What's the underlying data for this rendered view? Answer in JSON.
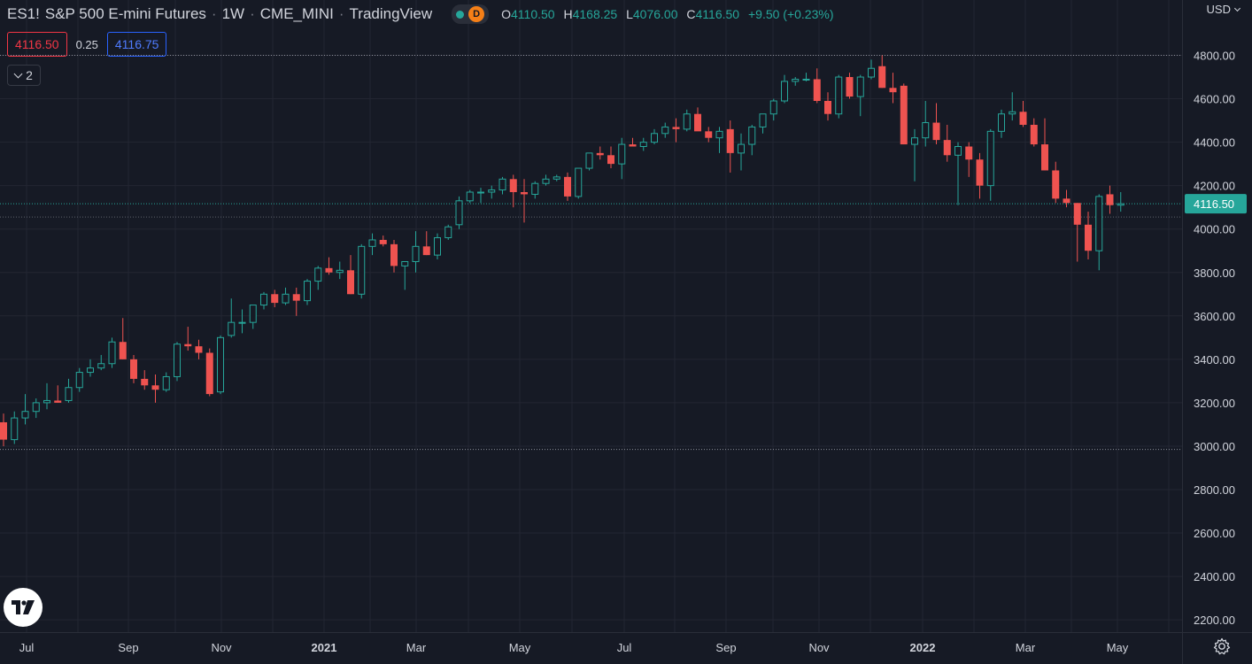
{
  "header": {
    "symbol": "ES1!",
    "description": "S&P 500 E-mini Futures",
    "interval": "1W",
    "exchange": "CME_MINI",
    "source": "TradingView",
    "status_letter": "D",
    "ohlc": {
      "o_key": "O",
      "o": "4110.50",
      "h_key": "H",
      "h": "4168.25",
      "l_key": "L",
      "l": "4076.00",
      "c_key": "C",
      "c": "4116.50",
      "change": "+9.50 (+0.23%)"
    }
  },
  "quote": {
    "sell": "4116.50",
    "spread": "0.25",
    "buy": "4116.75"
  },
  "indicators_count": "2",
  "currency": "USD",
  "colors": {
    "background": "#161a25",
    "up": "#26a69a",
    "down": "#ef5350",
    "grid": "#232632",
    "text": "#d1d4dc"
  },
  "chart_data": {
    "type": "candlestick",
    "interval": "1W",
    "y_axis": {
      "range": [
        2150,
        4860
      ],
      "ticks": [
        2200,
        2400,
        2600,
        2800,
        3000,
        3200,
        3400,
        3600,
        3800,
        4000,
        4200,
        4400,
        4600,
        4800
      ],
      "side": "right"
    },
    "x_axis_labels": [
      "Jul",
      "Sep",
      "Nov",
      "2021",
      "Mar",
      "May",
      "Jul",
      "Sep",
      "Nov",
      "2022",
      "Mar",
      "May"
    ],
    "last_price": 4116.5,
    "last_price_label": "4116.50",
    "range_high": 4800,
    "range_low": 2985,
    "candles": [
      [
        3110,
        3150,
        3000,
        3030
      ],
      [
        3030,
        3160,
        3010,
        3130
      ],
      [
        3130,
        3240,
        3100,
        3160
      ],
      [
        3160,
        3220,
        3130,
        3200
      ],
      [
        3200,
        3290,
        3170,
        3210
      ],
      [
        3210,
        3280,
        3200,
        3200
      ],
      [
        3210,
        3310,
        3200,
        3270
      ],
      [
        3270,
        3360,
        3250,
        3340
      ],
      [
        3340,
        3400,
        3320,
        3360
      ],
      [
        3360,
        3420,
        3350,
        3380
      ],
      [
        3380,
        3500,
        3360,
        3480
      ],
      [
        3480,
        3590,
        3400,
        3400
      ],
      [
        3400,
        3420,
        3290,
        3310
      ],
      [
        3310,
        3350,
        3260,
        3280
      ],
      [
        3280,
        3330,
        3200,
        3260
      ],
      [
        3260,
        3340,
        3250,
        3320
      ],
      [
        3320,
        3480,
        3300,
        3470
      ],
      [
        3470,
        3550,
        3440,
        3460
      ],
      [
        3460,
        3490,
        3400,
        3430
      ],
      [
        3430,
        3450,
        3230,
        3240
      ],
      [
        3250,
        3510,
        3240,
        3500
      ],
      [
        3510,
        3680,
        3500,
        3570
      ],
      [
        3570,
        3630,
        3520,
        3570
      ],
      [
        3570,
        3650,
        3540,
        3650
      ],
      [
        3650,
        3710,
        3630,
        3700
      ],
      [
        3700,
        3720,
        3640,
        3660
      ],
      [
        3660,
        3730,
        3650,
        3700
      ],
      [
        3700,
        3730,
        3600,
        3670
      ],
      [
        3670,
        3770,
        3650,
        3760
      ],
      [
        3760,
        3830,
        3720,
        3820
      ],
      [
        3820,
        3870,
        3790,
        3800
      ],
      [
        3800,
        3850,
        3770,
        3810
      ],
      [
        3810,
        3880,
        3700,
        3700
      ],
      [
        3700,
        3930,
        3680,
        3920
      ],
      [
        3920,
        3980,
        3880,
        3950
      ],
      [
        3950,
        3970,
        3920,
        3930
      ],
      [
        3930,
        3950,
        3800,
        3830
      ],
      [
        3830,
        3850,
        3720,
        3850
      ],
      [
        3850,
        3990,
        3800,
        3920
      ],
      [
        3920,
        3990,
        3880,
        3880
      ],
      [
        3880,
        3980,
        3860,
        3960
      ],
      [
        3960,
        4020,
        3950,
        4010
      ],
      [
        4020,
        4150,
        4000,
        4130
      ],
      [
        4130,
        4180,
        4120,
        4170
      ],
      [
        4170,
        4190,
        4120,
        4170
      ],
      [
        4170,
        4200,
        4140,
        4180
      ],
      [
        4180,
        4240,
        4160,
        4230
      ],
      [
        4230,
        4250,
        4100,
        4170
      ],
      [
        4170,
        4230,
        4030,
        4160
      ],
      [
        4160,
        4220,
        4140,
        4210
      ],
      [
        4210,
        4250,
        4200,
        4230
      ],
      [
        4230,
        4250,
        4220,
        4240
      ],
      [
        4240,
        4260,
        4130,
        4150
      ],
      [
        4150,
        4280,
        4140,
        4280
      ],
      [
        4280,
        4350,
        4270,
        4350
      ],
      [
        4350,
        4380,
        4320,
        4340
      ],
      [
        4340,
        4380,
        4280,
        4300
      ],
      [
        4300,
        4420,
        4230,
        4390
      ],
      [
        4390,
        4420,
        4380,
        4380
      ],
      [
        4380,
        4420,
        4360,
        4400
      ],
      [
        4400,
        4460,
        4390,
        4440
      ],
      [
        4440,
        4490,
        4420,
        4470
      ],
      [
        4470,
        4510,
        4400,
        4460
      ],
      [
        4460,
        4550,
        4450,
        4530
      ],
      [
        4530,
        4560,
        4460,
        4450
      ],
      [
        4450,
        4470,
        4400,
        4420
      ],
      [
        4420,
        4470,
        4350,
        4450
      ],
      [
        4460,
        4500,
        4260,
        4350
      ],
      [
        4350,
        4440,
        4270,
        4390
      ],
      [
        4390,
        4480,
        4340,
        4470
      ],
      [
        4470,
        4530,
        4440,
        4530
      ],
      [
        4530,
        4600,
        4500,
        4590
      ],
      [
        4590,
        4710,
        4580,
        4680
      ],
      [
        4680,
        4700,
        4660,
        4690
      ],
      [
        4690,
        4720,
        4680,
        4690
      ],
      [
        4690,
        4740,
        4580,
        4590
      ],
      [
        4590,
        4630,
        4500,
        4530
      ],
      [
        4530,
        4710,
        4510,
        4700
      ],
      [
        4700,
        4720,
        4600,
        4610
      ],
      [
        4610,
        4710,
        4520,
        4700
      ],
      [
        4700,
        4780,
        4690,
        4740
      ],
      [
        4750,
        4800,
        4650,
        4650
      ],
      [
        4650,
        4720,
        4580,
        4630
      ],
      [
        4660,
        4670,
        4390,
        4390
      ],
      [
        4390,
        4460,
        4220,
        4420
      ],
      [
        4420,
        4590,
        4380,
        4490
      ],
      [
        4490,
        4580,
        4390,
        4410
      ],
      [
        4410,
        4480,
        4310,
        4340
      ],
      [
        4340,
        4400,
        4110,
        4380
      ],
      [
        4380,
        4400,
        4240,
        4320
      ],
      [
        4320,
        4350,
        4140,
        4200
      ],
      [
        4200,
        4460,
        4130,
        4450
      ],
      [
        4450,
        4550,
        4420,
        4530
      ],
      [
        4530,
        4630,
        4500,
        4540
      ],
      [
        4540,
        4590,
        4470,
        4480
      ],
      [
        4480,
        4510,
        4380,
        4390
      ],
      [
        4390,
        4510,
        4270,
        4270
      ],
      [
        4270,
        4310,
        4120,
        4140
      ],
      [
        4140,
        4180,
        4100,
        4120
      ],
      [
        4120,
        4120,
        3850,
        4020
      ],
      [
        4020,
        4080,
        3860,
        3900
      ],
      [
        3900,
        4160,
        3810,
        4150
      ],
      [
        4160,
        4200,
        4070,
        4110
      ],
      [
        4110,
        4170,
        4080,
        4116.5
      ]
    ]
  }
}
